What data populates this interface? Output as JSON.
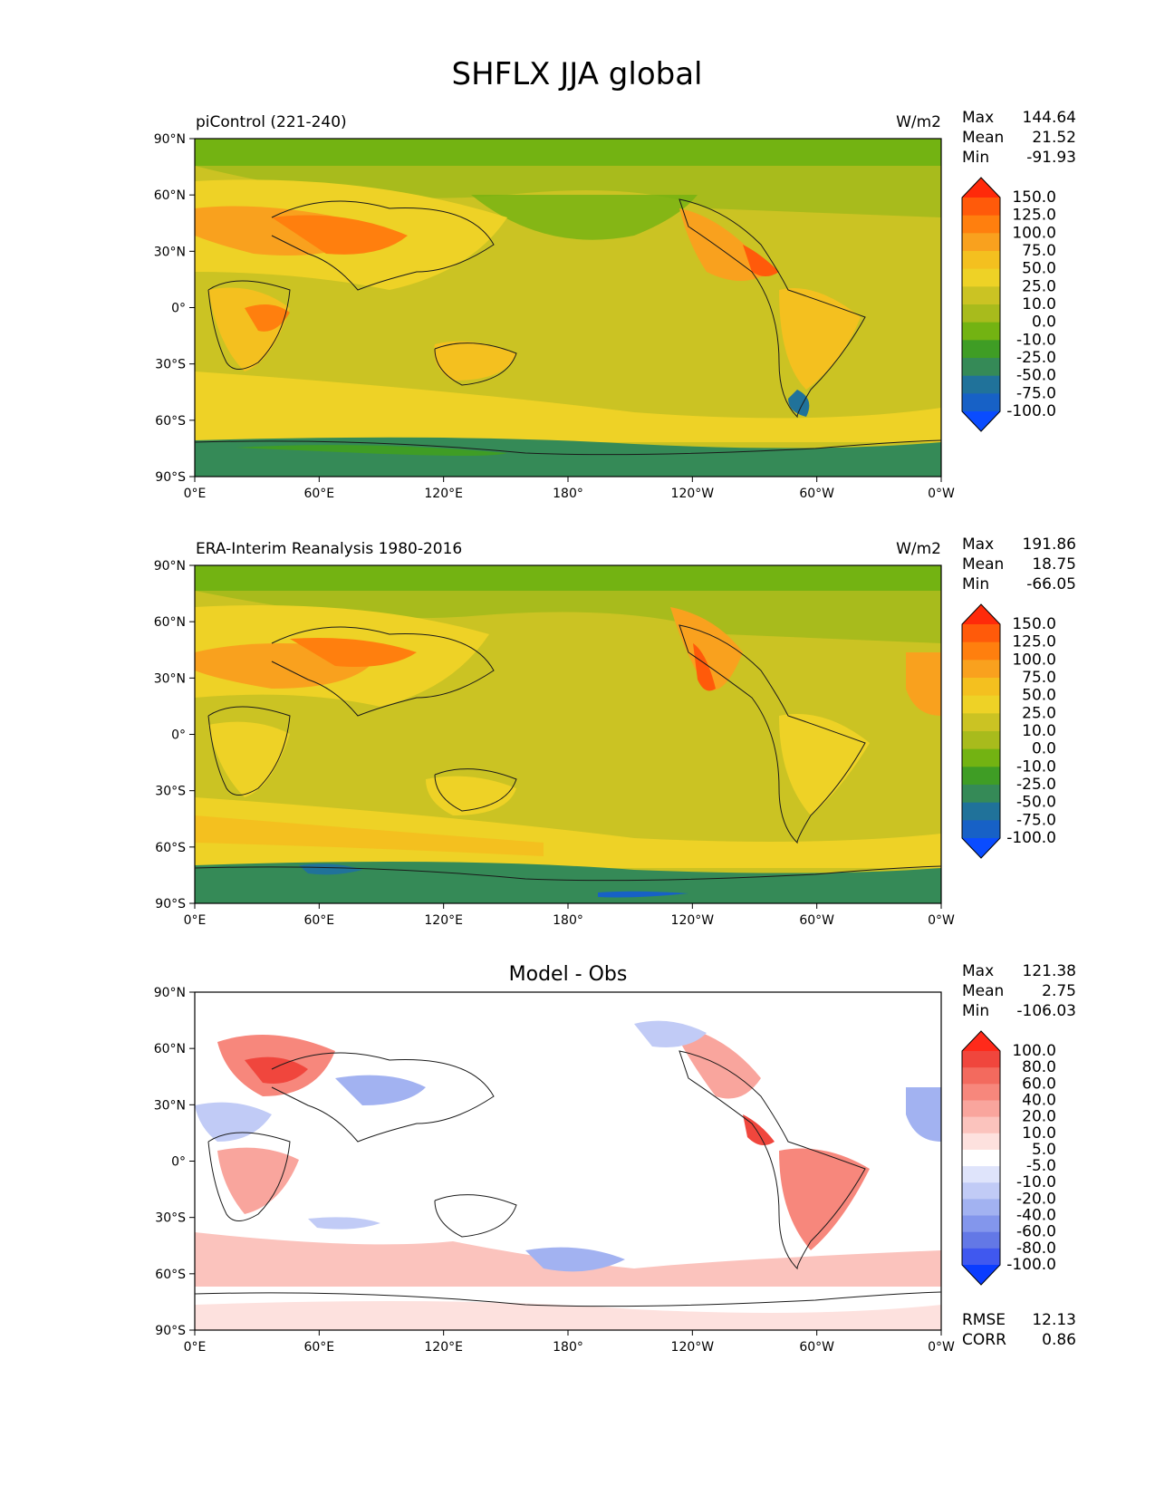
{
  "figure": {
    "title": "SHFLX JJA global"
  },
  "axes": {
    "lat_ticks": [
      "90°N",
      "60°N",
      "30°N",
      "0°",
      "30°S",
      "60°S",
      "90°S"
    ],
    "lon_ticks": [
      "0°E",
      "60°E",
      "120°E",
      "180°",
      "120°W",
      "60°W",
      "0°W"
    ]
  },
  "panels": [
    {
      "id": "model",
      "left_title": "piControl (221-240)",
      "center_title": "",
      "units": "W/m2",
      "stats": {
        "max_label": "Max",
        "max": "144.64",
        "mean_label": "Mean",
        "mean": "21.52",
        "min_label": "Min",
        "min": "-91.93"
      },
      "colorbar_type": "abs"
    },
    {
      "id": "obs",
      "left_title": "ERA-Interim Reanalysis 1980-2016",
      "center_title": "",
      "units": "W/m2",
      "stats": {
        "max_label": "Max",
        "max": "191.86",
        "mean_label": "Mean",
        "mean": "18.75",
        "min_label": "Min",
        "min": "-66.05"
      },
      "colorbar_type": "abs"
    },
    {
      "id": "diff",
      "left_title": "",
      "center_title": "Model - Obs",
      "units": "",
      "stats": {
        "max_label": "Max",
        "max": "121.38",
        "mean_label": "Mean",
        "mean": "2.75",
        "min_label": "Min",
        "min": "-106.03"
      },
      "colorbar_type": "diff",
      "extra": {
        "rmse_label": "RMSE",
        "rmse": "12.13",
        "corr_label": "CORR",
        "corr": "0.86"
      }
    }
  ],
  "colorbars": {
    "abs": {
      "labels": [
        "150.0",
        "125.0",
        "100.0",
        "75.0",
        "50.0",
        "25.0",
        "10.0",
        "0.0",
        "-10.0",
        "-25.0",
        "-50.0",
        "-75.0",
        "-100.0"
      ],
      "colors": [
        "#ff2a0a",
        "#ff5a0a",
        "#ff7f0e",
        "#f9a11e",
        "#f4c01f",
        "#eed226",
        "#cbc323",
        "#a8bb1c",
        "#73b312",
        "#3f9d25",
        "#358a57",
        "#20729a",
        "#1761c6",
        "#0a4cff"
      ]
    },
    "diff": {
      "labels": [
        "100.0",
        "80.0",
        "60.0",
        "40.0",
        "20.0",
        "10.0",
        "5.0",
        "-5.0",
        "-10.0",
        "-20.0",
        "-40.0",
        "-60.0",
        "-80.0",
        "-100.0"
      ],
      "colors": [
        "#ff2a1a",
        "#f0463d",
        "#f36a5e",
        "#f7877c",
        "#f9a59d",
        "#fbc3bd",
        "#fde1de",
        "#ffffff",
        "#dfe4fb",
        "#c1cbf6",
        "#a2b2f1",
        "#8396ec",
        "#6378e6",
        "#4058ef",
        "#0a3cff"
      ]
    }
  },
  "chart_data": [
    {
      "type": "heatmap",
      "title": "piControl (221-240)",
      "units": "W/m2",
      "xlabel": "",
      "ylabel": "",
      "x_ticks": [
        "0°E",
        "60°E",
        "120°E",
        "180°",
        "120°W",
        "60°W",
        "0°W"
      ],
      "y_ticks": [
        "90°N",
        "60°N",
        "30°N",
        "0°",
        "30°S",
        "60°S",
        "90°S"
      ],
      "levels": [
        -100,
        -75,
        -50,
        -25,
        -10,
        0,
        10,
        25,
        50,
        75,
        100,
        125,
        150
      ],
      "stats": {
        "max": 144.64,
        "mean": 21.52,
        "min": -91.93
      }
    },
    {
      "type": "heatmap",
      "title": "ERA-Interim Reanalysis 1980-2016",
      "units": "W/m2",
      "xlabel": "",
      "ylabel": "",
      "x_ticks": [
        "0°E",
        "60°E",
        "120°E",
        "180°",
        "120°W",
        "60°W",
        "0°W"
      ],
      "y_ticks": [
        "90°N",
        "60°N",
        "30°N",
        "0°",
        "30°S",
        "60°S",
        "90°S"
      ],
      "levels": [
        -100,
        -75,
        -50,
        -25,
        -10,
        0,
        10,
        25,
        50,
        75,
        100,
        125,
        150
      ],
      "stats": {
        "max": 191.86,
        "mean": 18.75,
        "min": -66.05
      }
    },
    {
      "type": "heatmap",
      "title": "Model - Obs",
      "units": "",
      "xlabel": "",
      "ylabel": "",
      "x_ticks": [
        "0°E",
        "60°E",
        "120°E",
        "180°",
        "120°W",
        "60°W",
        "0°W"
      ],
      "y_ticks": [
        "90°N",
        "60°N",
        "30°N",
        "0°",
        "30°S",
        "60°S",
        "90°S"
      ],
      "levels": [
        -100,
        -80,
        -60,
        -40,
        -20,
        -10,
        -5,
        5,
        10,
        20,
        40,
        60,
        80,
        100
      ],
      "stats": {
        "max": 121.38,
        "mean": 2.75,
        "min": -106.03,
        "rmse": 12.13,
        "corr": 0.86
      }
    }
  ]
}
